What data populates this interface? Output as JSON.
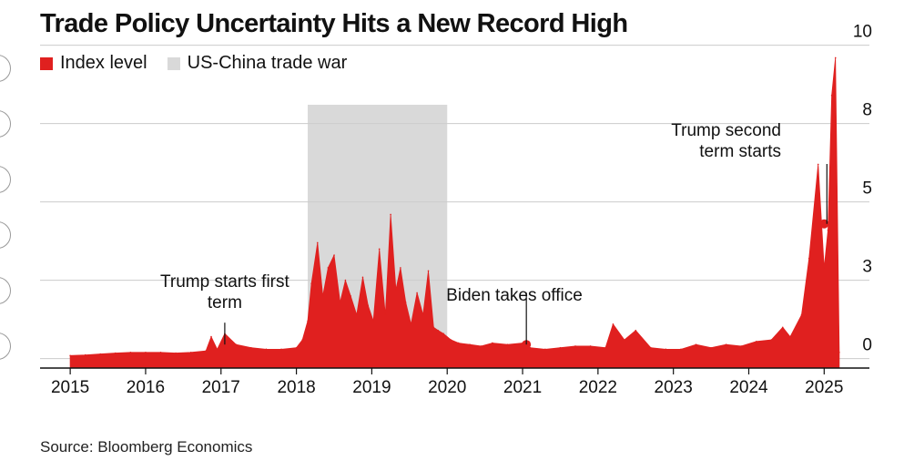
{
  "title": "Trade Policy Uncertainty Hits a New Record High",
  "legend": {
    "index_label": "Index level",
    "index_color": "#e0201f",
    "war_label": "US-China trade war",
    "war_color": "#d9d9d9"
  },
  "source": "Source: Bloomberg Economics",
  "chart_data": {
    "type": "area",
    "title": "Trade Policy Uncertainty Hits a New Record High",
    "xlabel": "",
    "ylabel": "",
    "x_ticks": [
      "2015",
      "2016",
      "2017",
      "2018",
      "2019",
      "2020",
      "2021",
      "2022",
      "2023",
      "2024",
      "2025"
    ],
    "y_ticks": [
      "0",
      "3",
      "5",
      "8",
      "10"
    ],
    "xlim": [
      2014.6,
      2025.6
    ],
    "ylim": [
      -0.3,
      9.7
    ],
    "grid": true,
    "y_axis_side": "right",
    "legend_position": "top-left",
    "shaded_regions": [
      {
        "label": "US-China trade war",
        "start": 2018.15,
        "end": 2020.0,
        "color": "#d9d9d9"
      }
    ],
    "series": [
      {
        "name": "Index level",
        "color": "#e0201f",
        "x": [
          2015.0,
          2015.2,
          2015.4,
          2015.6,
          2015.8,
          2016.0,
          2016.2,
          2016.4,
          2016.6,
          2016.8,
          2016.87,
          2016.95,
          2017.05,
          2017.2,
          2017.4,
          2017.6,
          2017.8,
          2018.0,
          2018.08,
          2018.15,
          2018.2,
          2018.28,
          2018.35,
          2018.42,
          2018.5,
          2018.58,
          2018.65,
          2018.72,
          2018.8,
          2018.88,
          2018.95,
          2019.02,
          2019.1,
          2019.18,
          2019.25,
          2019.32,
          2019.38,
          2019.45,
          2019.52,
          2019.6,
          2019.68,
          2019.75,
          2019.82,
          2019.88,
          2019.95,
          2020.05,
          2020.15,
          2020.3,
          2020.45,
          2020.6,
          2020.8,
          2021.0,
          2021.1,
          2021.3,
          2021.5,
          2021.7,
          2021.9,
          2022.1,
          2022.2,
          2022.35,
          2022.5,
          2022.7,
          2022.9,
          2023.1,
          2023.3,
          2023.5,
          2023.7,
          2023.9,
          2024.1,
          2024.3,
          2024.45,
          2024.55,
          2024.7,
          2024.8,
          2024.92,
          2025.0,
          2025.05,
          2025.1,
          2025.15,
          2025.2
        ],
        "values": [
          0.1,
          0.12,
          0.15,
          0.18,
          0.2,
          0.2,
          0.2,
          0.18,
          0.2,
          0.25,
          0.7,
          0.3,
          0.8,
          0.45,
          0.35,
          0.3,
          0.3,
          0.35,
          0.6,
          1.2,
          2.4,
          3.7,
          2.0,
          2.9,
          3.3,
          1.8,
          2.5,
          2.0,
          1.4,
          2.6,
          1.7,
          1.2,
          3.5,
          1.4,
          4.6,
          2.2,
          2.9,
          1.8,
          1.1,
          2.1,
          1.4,
          2.8,
          1.0,
          0.9,
          0.8,
          0.6,
          0.5,
          0.45,
          0.4,
          0.5,
          0.45,
          0.5,
          0.35,
          0.3,
          0.35,
          0.4,
          0.4,
          0.35,
          1.1,
          0.6,
          0.9,
          0.35,
          0.3,
          0.3,
          0.45,
          0.35,
          0.45,
          0.4,
          0.55,
          0.6,
          1.0,
          0.7,
          1.4,
          3.2,
          6.2,
          2.9,
          4.1,
          8.4,
          9.6,
          0.2
        ]
      }
    ],
    "annotations": [
      {
        "text_lines": [
          "Trump starts first",
          "term"
        ],
        "x": 2017.05,
        "y": 0.45
      },
      {
        "text_lines": [
          "Biden takes office"
        ],
        "x": 2021.05,
        "y": 0.45
      },
      {
        "text_lines": [
          "Trump second",
          "term starts"
        ],
        "x": 2025.0,
        "y": 4.3
      }
    ]
  }
}
